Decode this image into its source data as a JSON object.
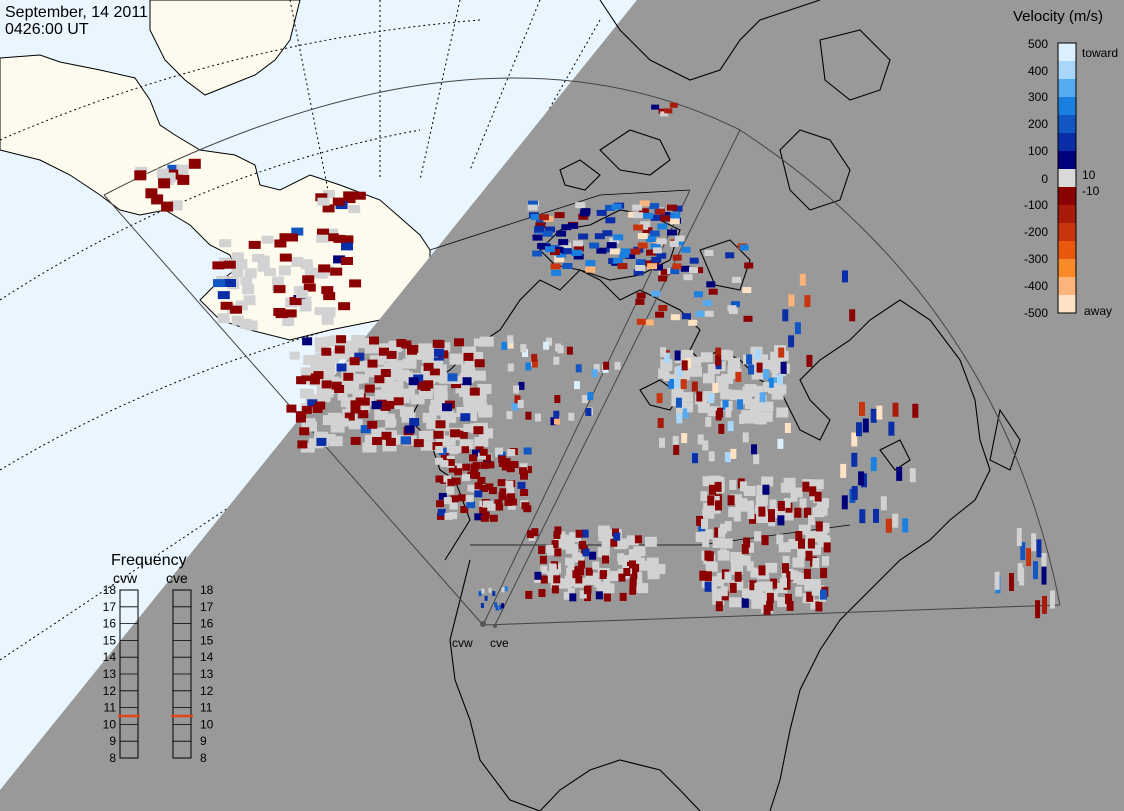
{
  "header": {
    "date": "September, 14 2011",
    "time": "0426:00 UT"
  },
  "legend": {
    "title": "Velocity (m/s)",
    "ticks": [
      "500",
      "400",
      "300",
      "200",
      "100",
      "10",
      "0",
      "-10",
      "-100",
      "-200",
      "-300",
      "-400",
      "-500"
    ],
    "toward_label": "toward",
    "away_label": "away",
    "colors": [
      "#fde3c4",
      "#fcb47a",
      "#f98a2a",
      "#e9580f",
      "#c8340d",
      "#a81a0a",
      "#8b0000",
      "#d9d9d9",
      "#00007a",
      "#0a2ea8",
      "#1256c4",
      "#1b7fe0",
      "#55aaf0",
      "#a9d7fb",
      "#dcefff"
    ]
  },
  "frequency": {
    "title": "Frequency",
    "columns": [
      {
        "label": "cvw",
        "value_mhz": 10.5
      },
      {
        "label": "cve",
        "value_mhz": 10.5
      }
    ],
    "ticks": [
      "18",
      "17",
      "16",
      "15",
      "14",
      "13",
      "12",
      "11",
      "10",
      "9",
      "8"
    ],
    "marker_color": "#e2461b"
  },
  "radars": [
    {
      "label": "cvw"
    },
    {
      "label": "cve"
    }
  ],
  "map": {
    "night_color": "#999999",
    "day_ocean_color": "#e9f6ff",
    "day_land_color": "#fdfaee",
    "ground_scatter_color": "#d2d2d2"
  }
}
